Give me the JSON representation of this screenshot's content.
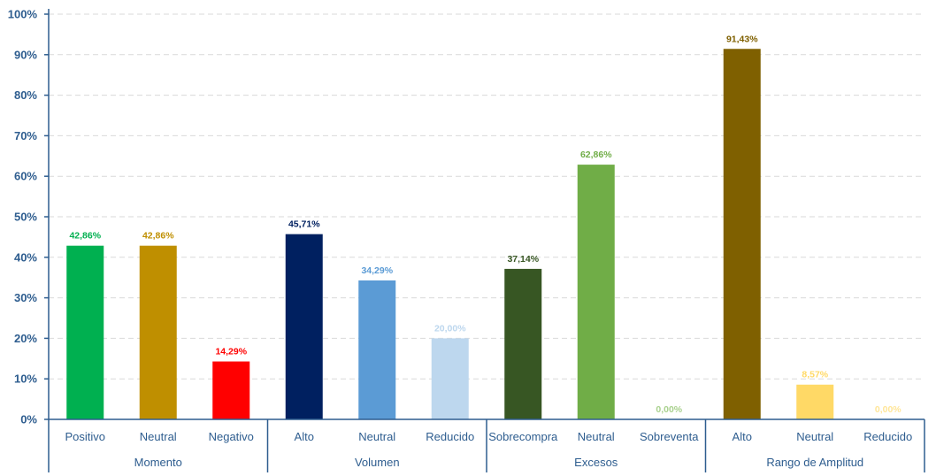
{
  "chart_data": {
    "type": "bar",
    "title": "",
    "xlabel": "",
    "ylabel": "",
    "ylim": [
      0,
      100
    ],
    "y_ticks": [
      "0%",
      "10%",
      "20%",
      "30%",
      "40%",
      "50%",
      "60%",
      "70%",
      "80%",
      "90%",
      "100%"
    ],
    "grid": true,
    "groups": [
      {
        "name": "Momento",
        "bars": [
          {
            "category": "Positivo",
            "value": 42.86,
            "label": "42,86%",
            "color": "#00b050"
          },
          {
            "category": "Neutral",
            "value": 42.86,
            "label": "42,86%",
            "color": "#bf8f00"
          },
          {
            "category": "Negativo",
            "value": 14.29,
            "label": "14,29%",
            "color": "#ff0000"
          }
        ]
      },
      {
        "name": "Volumen",
        "bars": [
          {
            "category": "Alto",
            "value": 45.71,
            "label": "45,71%",
            "color": "#002060"
          },
          {
            "category": "Neutral",
            "value": 34.29,
            "label": "34,29%",
            "color": "#5b9bd5"
          },
          {
            "category": "Reducido",
            "value": 20.0,
            "label": "20,00%",
            "color": "#bdd7ee"
          }
        ]
      },
      {
        "name": "Excesos",
        "bars": [
          {
            "category": "Sobrecompra",
            "value": 37.14,
            "label": "37,14%",
            "color": "#375623"
          },
          {
            "category": "Neutral",
            "value": 62.86,
            "label": "62,86%",
            "color": "#70ad47"
          },
          {
            "category": "Sobreventa",
            "value": 0.0,
            "label": "0,00%",
            "color": "#a9d18e"
          }
        ]
      },
      {
        "name": "Rango de Amplitud",
        "bars": [
          {
            "category": "Alto",
            "value": 91.43,
            "label": "91,43%",
            "color": "#7f6000"
          },
          {
            "category": "Neutral",
            "value": 8.57,
            "label": "8,57%",
            "color": "#ffd966"
          },
          {
            "category": "Reducido",
            "value": 0.0,
            "label": "0,00%",
            "color": "#ffe699"
          }
        ]
      }
    ],
    "colors": {
      "axis": "#2e5d8f",
      "grid": "#d9d9d9"
    }
  }
}
